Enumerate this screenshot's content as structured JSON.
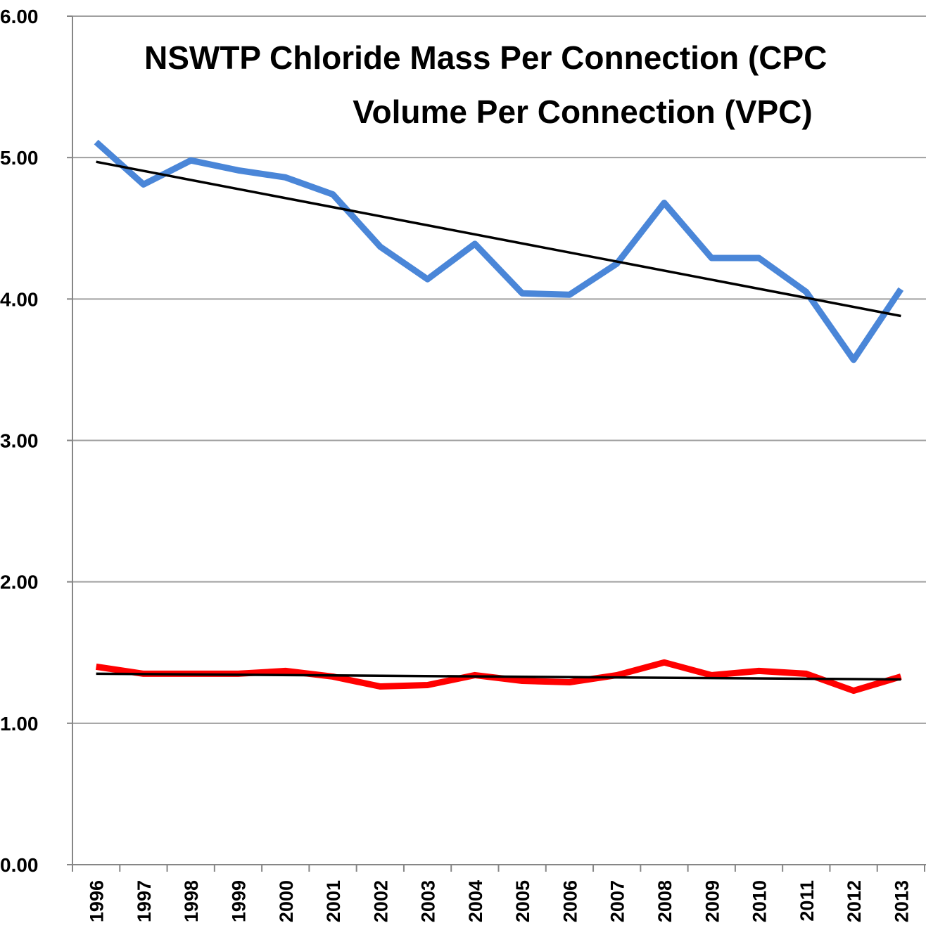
{
  "chart_data": {
    "type": "line",
    "title": [
      "NSWTP Chloride Mass Per Connection (CPC",
      "Volume Per Connection (VPC)"
    ],
    "categories": [
      "1996",
      "1997",
      "1998",
      "1999",
      "2000",
      "2001",
      "2002",
      "2003",
      "2004",
      "2005",
      "2006",
      "2007",
      "2008",
      "2009",
      "2010",
      "2011",
      "2012",
      "2013"
    ],
    "series": [
      {
        "color": "#4a86d8",
        "values": [
          5.11,
          4.81,
          4.98,
          4.91,
          4.86,
          4.74,
          4.37,
          4.14,
          4.39,
          4.04,
          4.03,
          4.25,
          4.68,
          4.29,
          4.29,
          4.05,
          3.57,
          4.07
        ]
      },
      {
        "color": "#ff0000",
        "values": [
          1.4,
          1.35,
          1.35,
          1.35,
          1.37,
          1.33,
          1.26,
          1.27,
          1.34,
          1.3,
          1.29,
          1.34,
          1.43,
          1.34,
          1.37,
          1.35,
          1.23,
          1.33
        ]
      }
    ],
    "trendlines": [
      {
        "color": "#000000",
        "values": [
          4.97,
          3.88
        ]
      },
      {
        "color": "#000000",
        "values": [
          1.35,
          1.31
        ]
      }
    ],
    "ylim": [
      0,
      6
    ],
    "yticks": [
      {
        "value": 0,
        "label": "0.00"
      },
      {
        "value": 1,
        "label": "1.00"
      },
      {
        "value": 2,
        "label": "2.00"
      },
      {
        "value": 3,
        "label": "3.00"
      },
      {
        "value": 4,
        "label": "4.00"
      },
      {
        "value": 5,
        "label": "5.00"
      },
      {
        "value": 6,
        "label": "6.00"
      }
    ],
    "grid": true
  }
}
